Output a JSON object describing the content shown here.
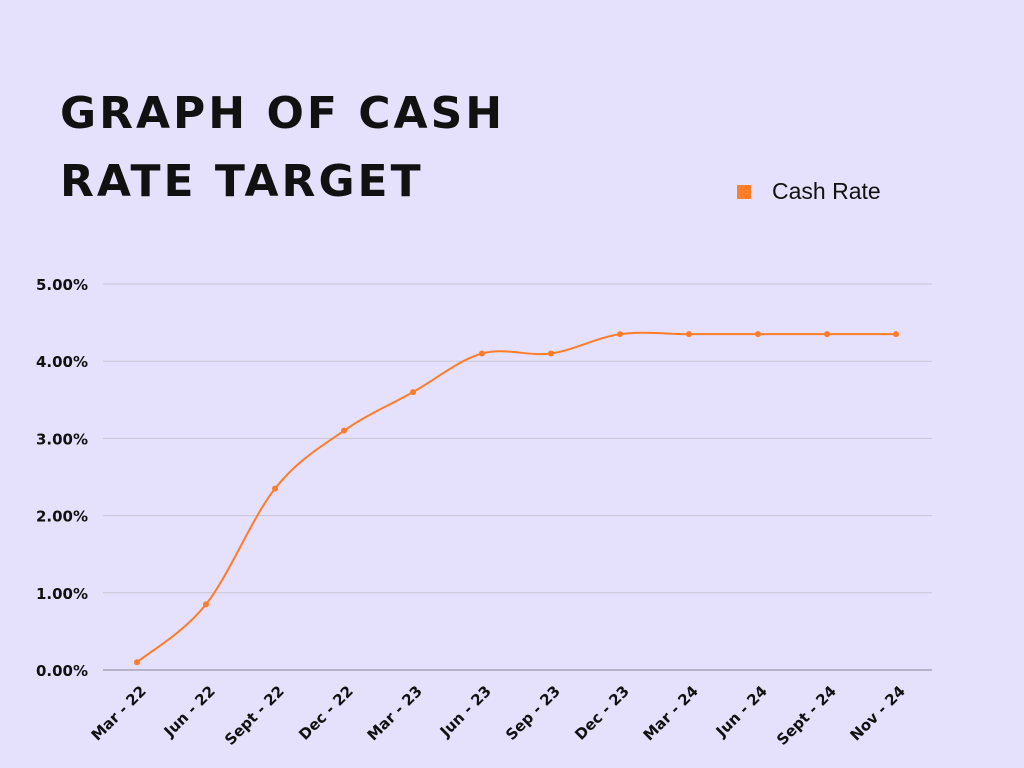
{
  "chart_data": {
    "type": "line",
    "title_lines": [
      "GRAPH OF CASH",
      "RATE TARGET"
    ],
    "xlabel": "",
    "ylabel": "",
    "categories": [
      "Mar - 22",
      "Jun - 22",
      "Sept - 22",
      "Dec - 22",
      "Mar - 23",
      "Jun - 23",
      "Sep - 23",
      "Dec - 23",
      "Mar - 24",
      "Jun - 24",
      "Sept - 24",
      "Nov - 24"
    ],
    "series": [
      {
        "name": "Cash Rate",
        "values": [
          0.1,
          0.85,
          2.35,
          3.1,
          3.6,
          4.1,
          4.1,
          4.35,
          4.35,
          4.35,
          4.35,
          4.35
        ]
      }
    ],
    "ylim": [
      0,
      5
    ],
    "yticks": [
      0,
      1,
      2,
      3,
      4,
      5
    ],
    "ytick_labels": [
      "0.00%",
      "1.00%",
      "2.00%",
      "3.00%",
      "4.00%",
      "5.00%"
    ],
    "grid": true,
    "legend_position": "top-right",
    "colors": {
      "line": "#ff7d29",
      "background": "#e5e0fb",
      "grid": "#c9c5d6",
      "axis": "#9a96a8"
    }
  }
}
